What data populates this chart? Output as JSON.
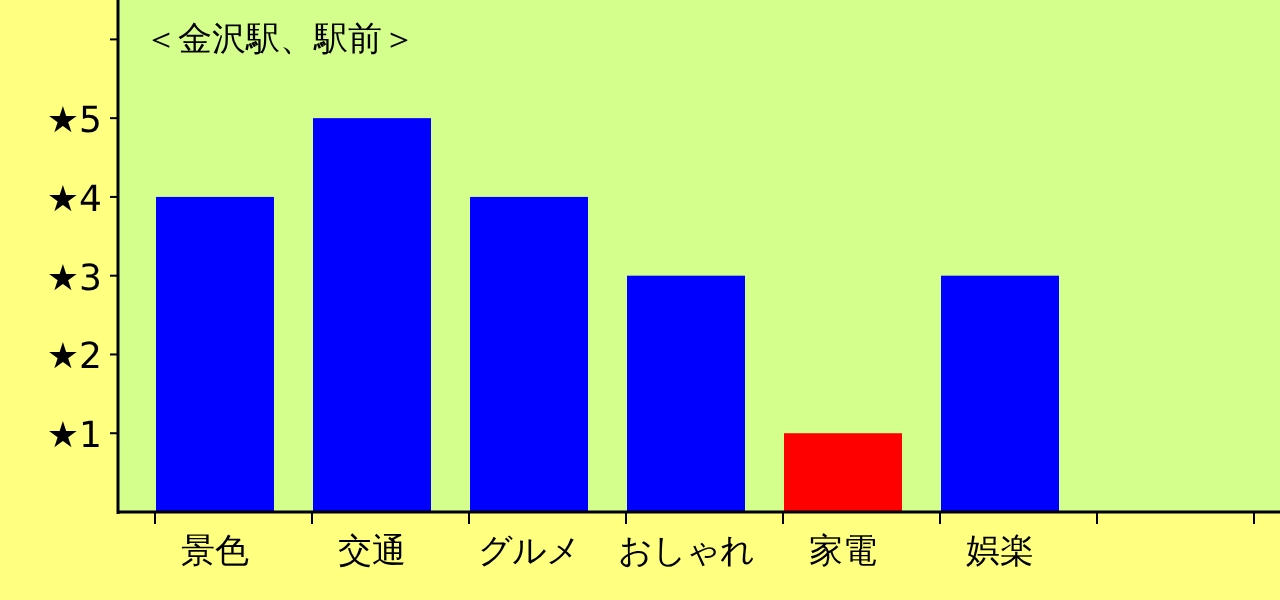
{
  "chart_data": {
    "type": "bar",
    "title": "＜金沢駅、駅前＞",
    "categories": [
      "景色",
      "交通",
      "グルメ",
      "おしゃれ",
      "家電",
      "娯楽",
      null
    ],
    "values": [
      4,
      5,
      4,
      3,
      1,
      3,
      null
    ],
    "colors": [
      "#0000ff",
      "#0000ff",
      "#0000ff",
      "#0000ff",
      "#ff0000",
      "#0000ff",
      null
    ],
    "ylim": [
      0,
      6.5
    ],
    "yticks": [
      {
        "value": 1,
        "label": "★1"
      },
      {
        "value": 2,
        "label": "★2"
      },
      {
        "value": 3,
        "label": "★3"
      },
      {
        "value": 4,
        "label": "★4"
      },
      {
        "value": 5,
        "label": "★5"
      },
      {
        "value": 6,
        "label": null
      }
    ],
    "grid": false
  }
}
